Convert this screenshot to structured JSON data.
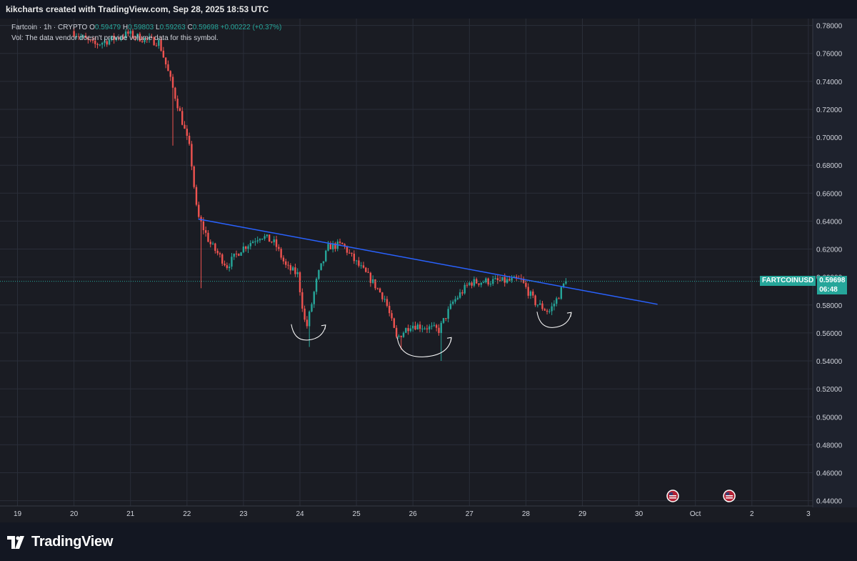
{
  "header": {
    "title": "kikcharts created with TradingView.com, Sep 28, 2025 18:53 UTC"
  },
  "legend": {
    "line1_prefix": "Fartcoin · 1h · CRYPTO  O",
    "open": "0.59479",
    "high_label": "H",
    "high": "0.59803",
    "low_label": "L",
    "low": "0.59263",
    "close_label": "C",
    "close": "0.59698",
    "change": "+0.00222 (+0.37%)",
    "line2": "Vol: The data vendor doesn't provide volume data for this symbol."
  },
  "price_tag": {
    "symbol": "FARTCOINUSD",
    "price": "0.59698",
    "countdown": "06:48"
  },
  "footer": {
    "brand": "TradingView"
  },
  "colors": {
    "up": "#26a69a",
    "down": "#ef5350",
    "trendline": "#2962ff",
    "background": "#1a1c23",
    "grid": "#2a2e39",
    "text": "#d1d4dc",
    "annotation": "#ffffff"
  },
  "icons": [
    "tradingview-logo-icon",
    "us-flag-event-icon"
  ],
  "chart_data": {
    "type": "candlestick",
    "symbol": "Fartcoin",
    "timeframe": "1h",
    "ylim": [
      0.44,
      0.78
    ],
    "y_ticks": [
      "0.78000",
      "0.76000",
      "0.74000",
      "0.72000",
      "0.70000",
      "0.68000",
      "0.66000",
      "0.64000",
      "0.62000",
      "0.60000",
      "0.58000",
      "0.56000",
      "0.54000",
      "0.52000",
      "0.50000",
      "0.48000",
      "0.46000",
      "0.44000"
    ],
    "x_ticks": [
      "19",
      "20",
      "21",
      "22",
      "23",
      "24",
      "25",
      "26",
      "27",
      "28",
      "29",
      "30",
      "Oct",
      "2",
      "3"
    ],
    "x_range_days": [
      19,
      33
    ],
    "last_price": 0.59698,
    "anchors": [
      {
        "t": 20.0,
        "price": 0.776
      },
      {
        "t": 20.4,
        "price": 0.766
      },
      {
        "t": 21.0,
        "price": 0.774
      },
      {
        "t": 21.3,
        "price": 0.77
      },
      {
        "t": 21.55,
        "price": 0.768
      },
      {
        "t": 21.72,
        "price": 0.745
      },
      {
        "t": 21.9,
        "price": 0.72
      },
      {
        "t": 22.1,
        "price": 0.69
      },
      {
        "t": 22.22,
        "price": 0.645
      },
      {
        "t": 22.45,
        "price": 0.624
      },
      {
        "t": 22.75,
        "price": 0.608
      },
      {
        "t": 23.0,
        "price": 0.62
      },
      {
        "t": 23.35,
        "price": 0.63
      },
      {
        "t": 23.6,
        "price": 0.624
      },
      {
        "t": 23.8,
        "price": 0.607
      },
      {
        "t": 24.0,
        "price": 0.602
      },
      {
        "t": 24.15,
        "price": 0.562
      },
      {
        "t": 24.35,
        "price": 0.6
      },
      {
        "t": 24.55,
        "price": 0.622
      },
      {
        "t": 24.8,
        "price": 0.623
      },
      {
        "t": 25.0,
        "price": 0.612
      },
      {
        "t": 25.3,
        "price": 0.598
      },
      {
        "t": 25.55,
        "price": 0.584
      },
      {
        "t": 25.75,
        "price": 0.556
      },
      {
        "t": 26.0,
        "price": 0.566
      },
      {
        "t": 26.3,
        "price": 0.564
      },
      {
        "t": 26.5,
        "price": 0.562
      },
      {
        "t": 26.75,
        "price": 0.582
      },
      {
        "t": 27.05,
        "price": 0.596
      },
      {
        "t": 27.35,
        "price": 0.597
      },
      {
        "t": 27.65,
        "price": 0.597
      },
      {
        "t": 27.95,
        "price": 0.598
      },
      {
        "t": 28.2,
        "price": 0.582
      },
      {
        "t": 28.45,
        "price": 0.575
      },
      {
        "t": 28.6,
        "price": 0.585
      },
      {
        "t": 28.74,
        "price": 0.597
      }
    ],
    "trendline": {
      "start": {
        "t": 22.2,
        "price": 0.6415
      },
      "end": {
        "t": 30.33,
        "price": 0.5805
      }
    },
    "annotations": [
      {
        "type": "curved-arrow",
        "near": {
          "t": 24.15,
          "price": 0.557
        }
      },
      {
        "type": "curved-arrow",
        "near": {
          "t": 26.2,
          "price": 0.545
        }
      },
      {
        "type": "curved-arrow",
        "near": {
          "t": 28.5,
          "price": 0.566
        }
      }
    ],
    "event_markers": [
      {
        "t": 30.6
      },
      {
        "t": 31.6
      }
    ]
  }
}
